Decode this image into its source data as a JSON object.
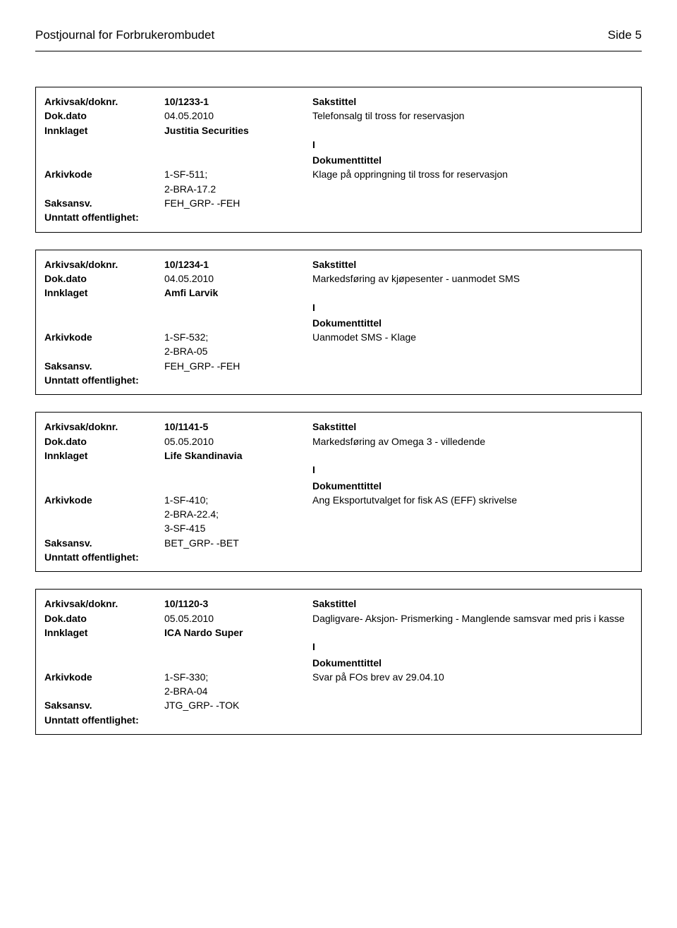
{
  "header": {
    "journal_title": "Postjournal for Forbrukerombudet",
    "page_label": "Side 5"
  },
  "labels": {
    "arkivsak": "Arkivsak/doknr.",
    "dokdato": "Dok.dato",
    "innklaget": "Innklaget",
    "arkivkode": "Arkivkode",
    "saksansv": "Saksansv.",
    "unntatt": "Unntatt offentlighet:",
    "sakstittel": "Sakstittel",
    "dokumenttittel": "Dokumenttittel"
  },
  "records": [
    {
      "arkivsak": "10/1233-1",
      "dokdato": "04.05.2010",
      "sakstittel_text": "Telefonsalg til tross for reservasjon",
      "innklaget": "Justitia Securities",
      "doc_io": "I",
      "arkivkode": "1-SF-511; 2-BRA-17.2",
      "dokumenttittel_text": "Klage på oppringning til tross for reservasjon",
      "saksansv": "FEH_GRP- -FEH",
      "unntatt": ""
    },
    {
      "arkivsak": "10/1234-1",
      "dokdato": "04.05.2010",
      "sakstittel_text": "Markedsføring av kjøpesenter - uanmodet SMS",
      "innklaget": "Amfi Larvik",
      "doc_io": "I",
      "arkivkode": "1-SF-532; 2-BRA-05",
      "dokumenttittel_text": "Uanmodet SMS - Klage",
      "saksansv": "FEH_GRP- -FEH",
      "unntatt": ""
    },
    {
      "arkivsak": "10/1141-5",
      "dokdato": "05.05.2010",
      "sakstittel_text": "Markedsføring av Omega 3  - villedende",
      "innklaget": "Life Skandinavia",
      "doc_io": "I",
      "arkivkode": "1-SF-410; 2-BRA-22.4; 3-SF-415",
      "dokumenttittel_text": "Ang Eksportutvalget for fisk AS (EFF) skrivelse",
      "saksansv": "BET_GRP- -BET",
      "unntatt": ""
    },
    {
      "arkivsak": "10/1120-3",
      "dokdato": "05.05.2010",
      "sakstittel_text": "Dagligvare- Aksjon- Prismerking - Manglende samsvar med pris i kasse",
      "innklaget": "ICA Nardo Super",
      "doc_io": "I",
      "arkivkode": "1-SF-330; 2-BRA-04",
      "dokumenttittel_text": "Svar på FOs brev av 29.04.10",
      "saksansv": "JTG_GRP- -TOK",
      "unntatt": ""
    }
  ]
}
